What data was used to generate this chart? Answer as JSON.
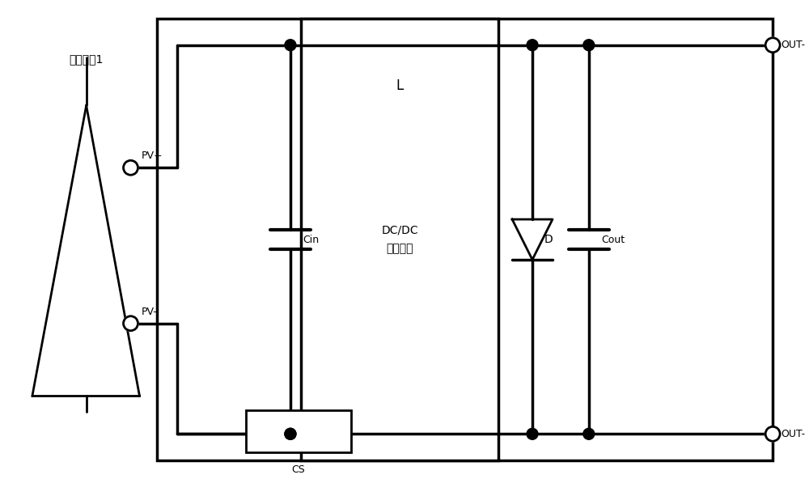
{
  "bg_color": "#ffffff",
  "line_color": "#000000",
  "line_width": 2.5,
  "fig_width": 10.0,
  "fig_height": 5.92,
  "title": "",
  "pv_label": "光伏组件1",
  "pv_plus_label": "PV+",
  "pv_minus_label": "PV-",
  "cin_label": "Cin",
  "cout_label": "Cout",
  "cs_label": "CS",
  "l_label": "L",
  "d_label": "D",
  "dcdc_label": "DC/DC\n转换电路",
  "out_plus_label": "OUT-",
  "out_minus_label": "OUT-"
}
